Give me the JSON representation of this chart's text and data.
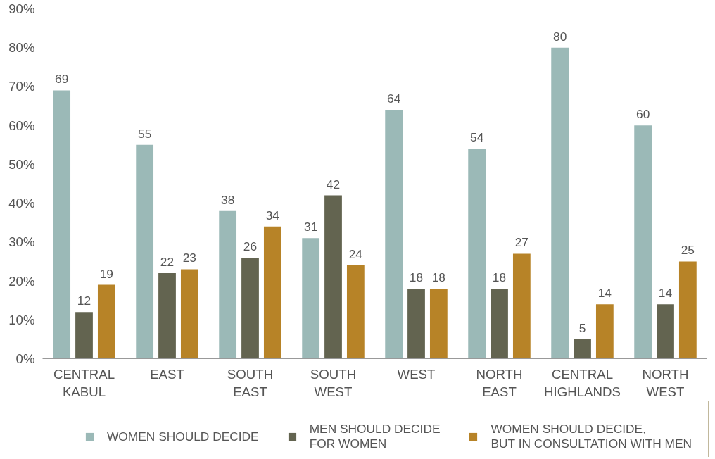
{
  "chart_data": {
    "type": "bar",
    "categories": [
      "CENTRAL\nKABUL",
      "EAST",
      "SOUTH\nEAST",
      "SOUTH\nWEST",
      "WEST",
      "NORTH\nEAST",
      "CENTRAL\nHIGHLANDS",
      "NORTH\nWEST"
    ],
    "series": [
      {
        "name": "WOMEN SHOULD DECIDE",
        "color": "#9bb9b7",
        "values": [
          69,
          55,
          38,
          31,
          64,
          54,
          80,
          60
        ]
      },
      {
        "name": "MEN SHOULD DECIDE\nFOR WOMEN",
        "color": "#636450",
        "values": [
          12,
          22,
          26,
          42,
          18,
          18,
          5,
          14
        ]
      },
      {
        "name": "WOMEN SHOULD DECIDE,\nBUT IN CONSULTATION WITH MEN",
        "color": "#b78327",
        "values": [
          19,
          23,
          34,
          24,
          18,
          27,
          14,
          25
        ]
      }
    ],
    "ylim": [
      0,
      90
    ],
    "yticks": [
      {
        "value": 0,
        "label": "0%"
      },
      {
        "value": 10,
        "label": "10%"
      },
      {
        "value": 20,
        "label": "20%"
      },
      {
        "value": 30,
        "label": "30%"
      },
      {
        "value": 40,
        "label": "40%"
      },
      {
        "value": 50,
        "label": "50%"
      },
      {
        "value": 60,
        "label": "60%"
      },
      {
        "value": 70,
        "label": "70%"
      },
      {
        "value": 80,
        "label": "80%"
      },
      {
        "value": 90,
        "label": "90%"
      }
    ],
    "grid": false,
    "legend": "bottom",
    "data_labels": true
  }
}
